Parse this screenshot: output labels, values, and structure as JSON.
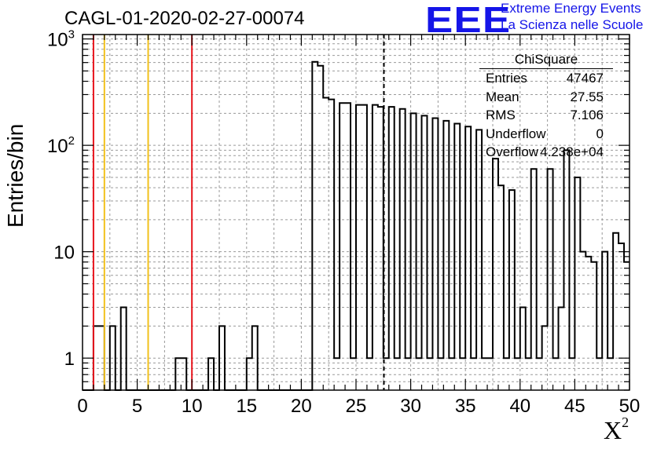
{
  "title": "CAGL-01-2020-02-27-00074",
  "logo": {
    "text": "EEE",
    "line1": "Extreme Energy Events",
    "line2": "La Scienza nelle Scuole",
    "color": "#1515e8"
  },
  "stats": {
    "title": "ChiSquare",
    "rows": [
      {
        "key": "Entries",
        "value": "47467"
      },
      {
        "key": "Mean",
        "value": "27.55"
      },
      {
        "key": "RMS",
        "value": "7.106"
      },
      {
        "key": "Underflow",
        "value": "0"
      },
      {
        "key": "Overflow",
        "value": "4.238e+04"
      }
    ]
  },
  "chart_data": {
    "type": "bar",
    "style": "step-histogram",
    "title": "CAGL-01-2020-02-27-00074",
    "xlabel": "X",
    "xlabel_superscript": "2",
    "ylabel": "Entries/bin",
    "xlim": [
      0,
      50
    ],
    "ylim": [
      0.5,
      1100
    ],
    "yscale": "log",
    "grid": true,
    "bin_width": 0.5,
    "x_ticks": [
      0,
      5,
      10,
      15,
      20,
      25,
      30,
      35,
      40,
      45,
      50
    ],
    "y_tick_labels": [
      {
        "value": 1,
        "label": "1"
      },
      {
        "value": 10,
        "label": "10"
      },
      {
        "value": 100,
        "label": "10",
        "exponent": "2"
      },
      {
        "value": 1000,
        "label": "10",
        "exponent": "3"
      }
    ],
    "counts": [
      0,
      0,
      2,
      2,
      0,
      2,
      0,
      3,
      0,
      0,
      0,
      0,
      0,
      0,
      0,
      0,
      0,
      1,
      1,
      0,
      0,
      0,
      0,
      1,
      0,
      2,
      0,
      0,
      0,
      0,
      1,
      2,
      0,
      0,
      0,
      0,
      0,
      0,
      0,
      0,
      0,
      0,
      610,
      560,
      280,
      270,
      1,
      250,
      250,
      1,
      240,
      240,
      1,
      240,
      230,
      1,
      230,
      1,
      220,
      1,
      200,
      1,
      190,
      1,
      180,
      1,
      170,
      1,
      160,
      1,
      150,
      1,
      140,
      1,
      1,
      75,
      42,
      1,
      38,
      1,
      3,
      1,
      60,
      1,
      2,
      60,
      1,
      3,
      90,
      1,
      50,
      10,
      9,
      8,
      1,
      10,
      1,
      15,
      12,
      8
    ],
    "vertical_lines": [
      {
        "x": 1,
        "color": "#e8141c",
        "style": "solid"
      },
      {
        "x": 2,
        "color": "#f2c11c",
        "style": "solid"
      },
      {
        "x": 6,
        "color": "#f2c11c",
        "style": "solid"
      },
      {
        "x": 10,
        "color": "#e8141c",
        "style": "solid"
      },
      {
        "x": 27.55,
        "color": "#000000",
        "style": "dashed"
      }
    ]
  }
}
